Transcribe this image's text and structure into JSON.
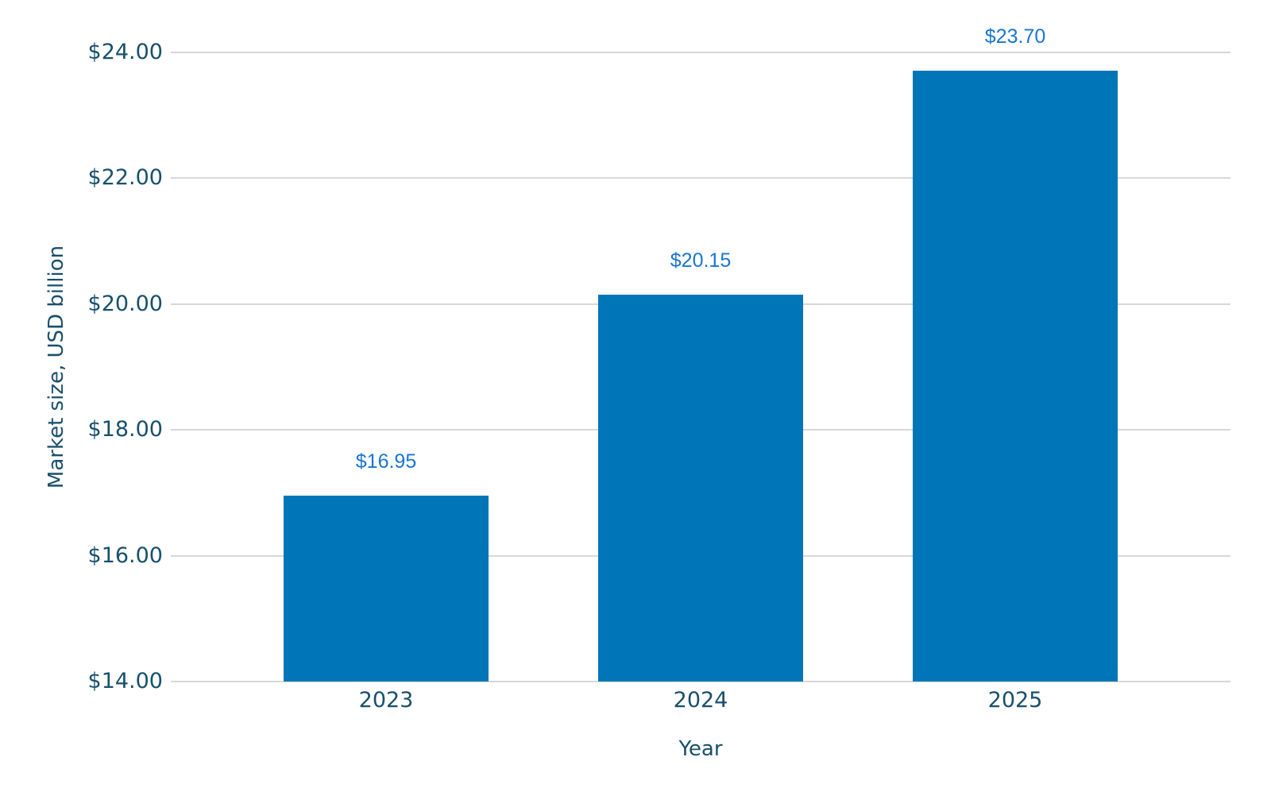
{
  "chart_data": {
    "type": "bar",
    "title": "",
    "xlabel": "Year",
    "ylabel": "Market size, USD billion",
    "categories": [
      "2023",
      "2024",
      "2025"
    ],
    "values": [
      16.95,
      20.15,
      23.7
    ],
    "value_labels": [
      "$16.95",
      "$20.15",
      "$23.70"
    ],
    "ylim": [
      14,
      24
    ],
    "yticks": [
      14,
      16,
      18,
      20,
      22,
      24
    ],
    "ytick_labels": [
      "$14.00",
      "$16.00",
      "$18.00",
      "$20.00",
      "$22.00",
      "$24.00"
    ],
    "grid": "horizontal",
    "legend_position": "none",
    "colors": {
      "bar": "#0076B8",
      "value_label": "#1976D2",
      "axis_text": "#17506C",
      "gridline": "#D7D7D7",
      "background": "#FFFFFF"
    }
  }
}
